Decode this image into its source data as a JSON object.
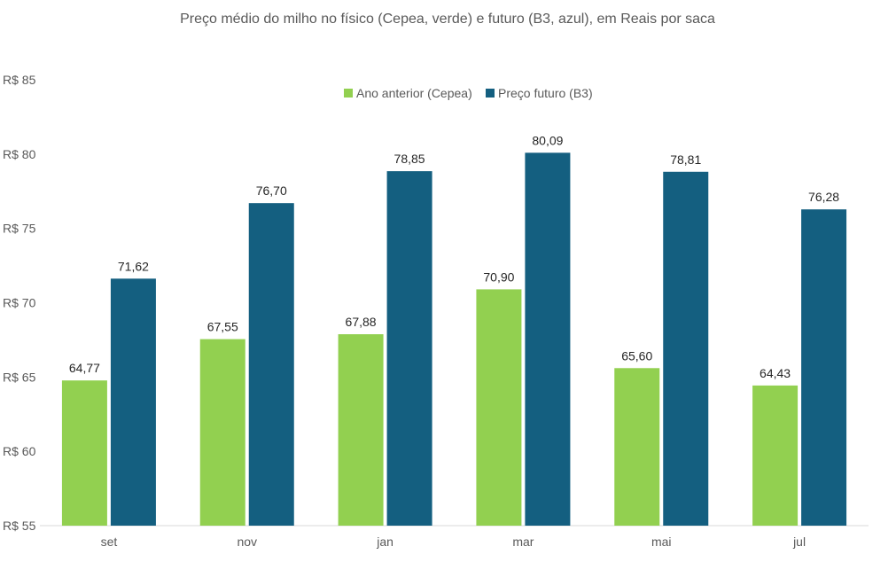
{
  "chart_data": {
    "type": "bar",
    "title": "Preço médio do milho no físico (Cepea, verde) e futuro (B3, azul), em Reais por saca",
    "xlabel": "",
    "ylabel": "",
    "categories": [
      "set",
      "nov",
      "jan",
      "mar",
      "mai",
      "jul"
    ],
    "series": [
      {
        "name": "Ano anterior (Cepea)",
        "color": "#92d050",
        "values": [
          64.77,
          67.55,
          67.88,
          70.9,
          65.6,
          64.43
        ],
        "labels": [
          "64,77",
          "67,55",
          "67,88",
          "70,90",
          "65,60",
          "64,43"
        ]
      },
      {
        "name": "Preço futuro (B3)",
        "color": "#145f80",
        "values": [
          71.62,
          76.7,
          78.85,
          80.09,
          78.81,
          76.28
        ],
        "labels": [
          "71,62",
          "76,70",
          "78,85",
          "80,09",
          "78,81",
          "76,28"
        ]
      }
    ],
    "ylim": [
      55,
      85
    ],
    "yticks": [
      55,
      60,
      65,
      70,
      75,
      80,
      85
    ],
    "ytick_labels": [
      "R$ 55",
      "R$ 60",
      "R$ 65",
      "R$ 70",
      "R$ 75",
      "R$ 80",
      "R$ 85"
    ],
    "grid": false,
    "legend_position": "top-center"
  }
}
